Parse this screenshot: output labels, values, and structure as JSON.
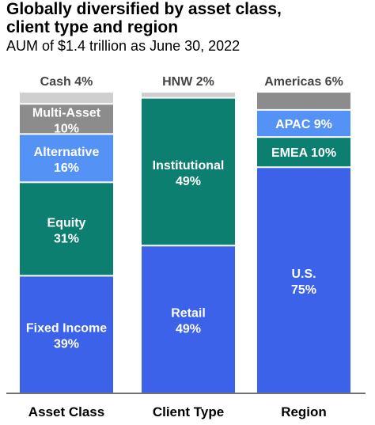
{
  "title_lines": [
    "Globally diversified by asset class,",
    "client type and region"
  ],
  "subtitle": "AUM of $1.4 trillion as June 30, 2022",
  "colors": {
    "blue": "#3b62e8",
    "teal": "#0d7f70",
    "light_blue": "#5592f5",
    "gray": "#8c8c8c",
    "light_gray": "#cfcfcf",
    "axis": "#444444",
    "label_dark": "#444444"
  },
  "chart_data": {
    "type": "bar",
    "stacked": true,
    "unit": "%",
    "ylim": [
      0,
      100
    ],
    "grid": false,
    "legend": "none",
    "categories": [
      "Asset Class",
      "Client Type",
      "Region"
    ],
    "bars": [
      {
        "category": "Asset Class",
        "segments": [
          {
            "label": "Fixed Income",
            "value_text": "39%",
            "value": 39,
            "color": "blue",
            "label_position": "inside"
          },
          {
            "label": "Equity",
            "value_text": "31%",
            "value": 31,
            "color": "teal",
            "label_position": "inside"
          },
          {
            "label": "Alternative",
            "value_text": "16%",
            "value": 16,
            "color": "light_blue",
            "label_position": "inside"
          },
          {
            "label": "Multi-Asset",
            "value_text": "10%",
            "value": 10,
            "color": "gray",
            "label_position": "inside"
          },
          {
            "label": "Cash",
            "value_text": "4%",
            "value": 4,
            "color": "light_gray",
            "label_position": "above"
          }
        ]
      },
      {
        "category": "Client Type",
        "segments": [
          {
            "label": "Retail",
            "value_text": "49%",
            "value": 49,
            "color": "blue",
            "label_position": "inside"
          },
          {
            "label": "Institutional",
            "value_text": "49%",
            "value": 49,
            "color": "teal",
            "label_position": "inside"
          },
          {
            "label": "HNW",
            "value_text": "2%",
            "value": 2,
            "color": "light_gray",
            "label_position": "above"
          }
        ]
      },
      {
        "category": "Region",
        "segments": [
          {
            "label": "U.S.",
            "value_text": "75%",
            "value": 75,
            "color": "blue",
            "label_position": "inside"
          },
          {
            "label": "EMEA",
            "value_text": "10%",
            "value": 10,
            "color": "teal",
            "label_position": "inside_inline"
          },
          {
            "label": "APAC",
            "value_text": "9%",
            "value": 9,
            "color": "light_blue",
            "label_position": "inside_inline"
          },
          {
            "label": "Americas",
            "value_text": "6%",
            "value": 6,
            "color": "gray",
            "label_position": "above"
          }
        ]
      }
    ]
  }
}
